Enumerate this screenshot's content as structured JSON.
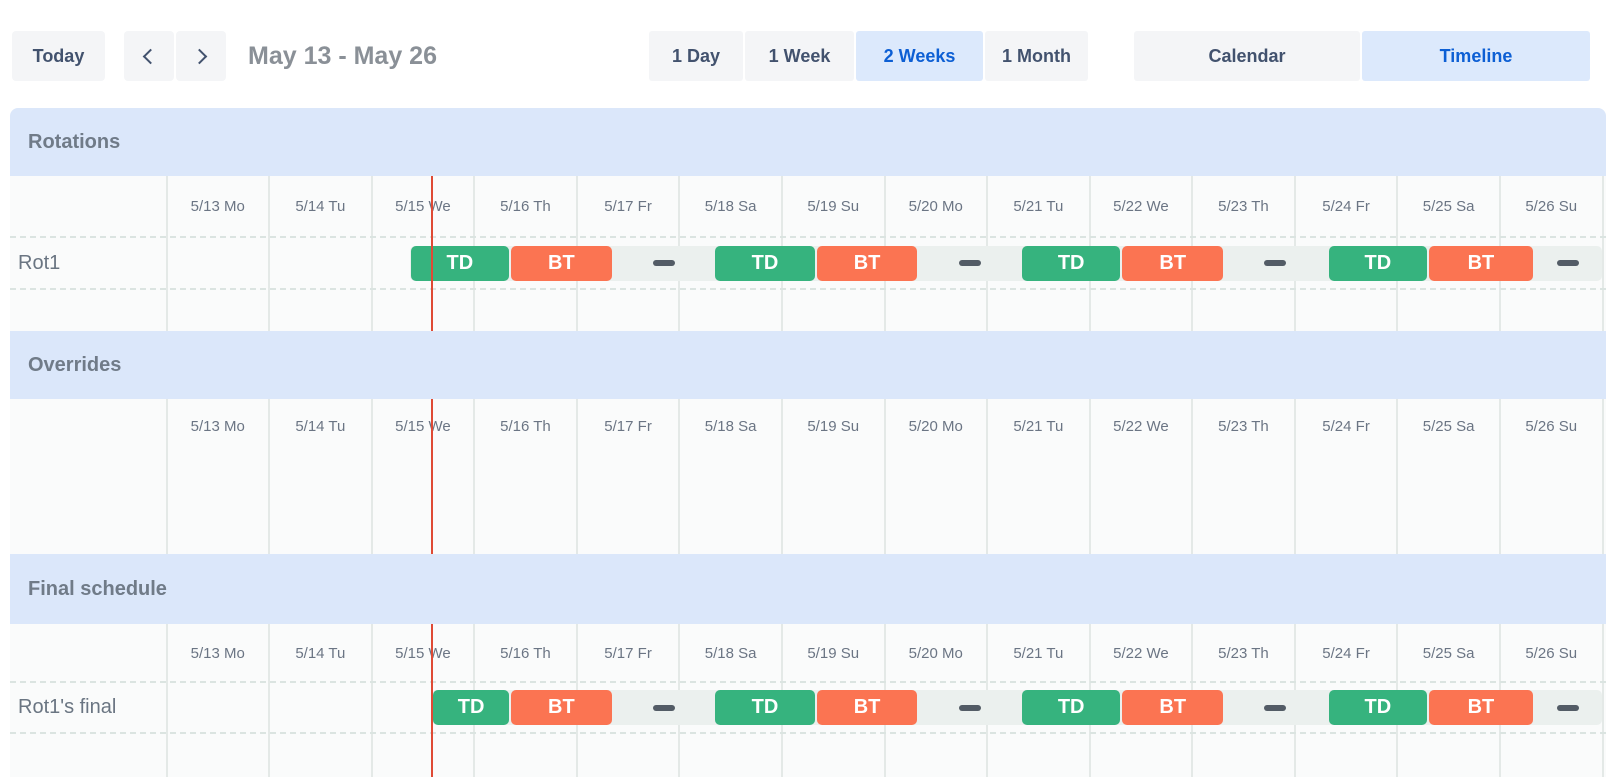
{
  "toolbar": {
    "today_label": "Today",
    "prev_icon": "chevron-left",
    "next_icon": "chevron-right",
    "title": "May 13 - May 26",
    "view_options": [
      {
        "label": "1 Day",
        "active": false
      },
      {
        "label": "1 Week",
        "active": false
      },
      {
        "label": "2 Weeks",
        "active": true
      },
      {
        "label": "1 Month",
        "active": false
      }
    ],
    "mode_options": [
      {
        "label": "Calendar",
        "active": false
      },
      {
        "label": "Timeline",
        "active": true
      }
    ]
  },
  "colors": {
    "accent_blue": "#0d5fd4",
    "selected_bg": "#dce9fc",
    "band_blue": "#dbe7fa",
    "band_title": "#707b88",
    "rows_bg": "#fafbfb",
    "separator": "#e4e9e7",
    "track": "#ebf0ee",
    "td_green": "#36b37e",
    "bt_orange": "#fb7452",
    "gap_dash": "#535c66",
    "now_line_red": "#df4a35"
  },
  "timeline": {
    "dates": [
      "5/13 Mo",
      "5/14 Tu",
      "5/15 We",
      "5/16 Th",
      "5/17 Fr",
      "5/18 Sa",
      "5/19 Su",
      "5/20 Mo",
      "5/21 Tu",
      "5/22 We",
      "5/23 Th",
      "5/24 Fr",
      "5/25 Sa",
      "5/26 Su"
    ],
    "now_day": 2.586,
    "sections": [
      {
        "id": "rotations",
        "title": "Rotations",
        "rows": [
          {
            "label": "Rot1",
            "track_start": 2.37,
            "segments": [
              {
                "type": "shift",
                "label": "TD",
                "start": 2.37,
                "end": 3.35
              },
              {
                "type": "shift",
                "label": "BT",
                "start": 3.35,
                "end": 4.35
              },
              {
                "type": "gap",
                "center": 4.85
              },
              {
                "type": "shift",
                "label": "TD",
                "start": 5.34,
                "end": 6.33
              },
              {
                "type": "shift",
                "label": "BT",
                "start": 6.33,
                "end": 7.33
              },
              {
                "type": "gap",
                "center": 7.83
              },
              {
                "type": "shift",
                "label": "TD",
                "start": 8.33,
                "end": 9.31
              },
              {
                "type": "shift",
                "label": "BT",
                "start": 9.31,
                "end": 10.31
              },
              {
                "type": "gap",
                "center": 10.81
              },
              {
                "type": "shift",
                "label": "TD",
                "start": 11.32,
                "end": 12.3
              },
              {
                "type": "shift",
                "label": "BT",
                "start": 12.3,
                "end": 13.33
              },
              {
                "type": "gap",
                "center": 13.66
              }
            ]
          }
        ]
      },
      {
        "id": "overrides",
        "title": "Overrides",
        "rows": []
      },
      {
        "id": "final",
        "title": "Final schedule",
        "rows": [
          {
            "label": "Rot1's final",
            "track_start": 2.59,
            "segments": [
              {
                "type": "shift",
                "label": "TD",
                "start": 2.59,
                "end": 3.35
              },
              {
                "type": "shift",
                "label": "BT",
                "start": 3.35,
                "end": 4.35
              },
              {
                "type": "gap",
                "center": 4.85
              },
              {
                "type": "shift",
                "label": "TD",
                "start": 5.34,
                "end": 6.33
              },
              {
                "type": "shift",
                "label": "BT",
                "start": 6.33,
                "end": 7.33
              },
              {
                "type": "gap",
                "center": 7.83
              },
              {
                "type": "shift",
                "label": "TD",
                "start": 8.33,
                "end": 9.31
              },
              {
                "type": "shift",
                "label": "BT",
                "start": 9.31,
                "end": 10.31
              },
              {
                "type": "gap",
                "center": 10.81
              },
              {
                "type": "shift",
                "label": "TD",
                "start": 11.32,
                "end": 12.3
              },
              {
                "type": "shift",
                "label": "BT",
                "start": 12.3,
                "end": 13.33
              },
              {
                "type": "gap",
                "center": 13.66
              }
            ]
          }
        ]
      }
    ]
  }
}
